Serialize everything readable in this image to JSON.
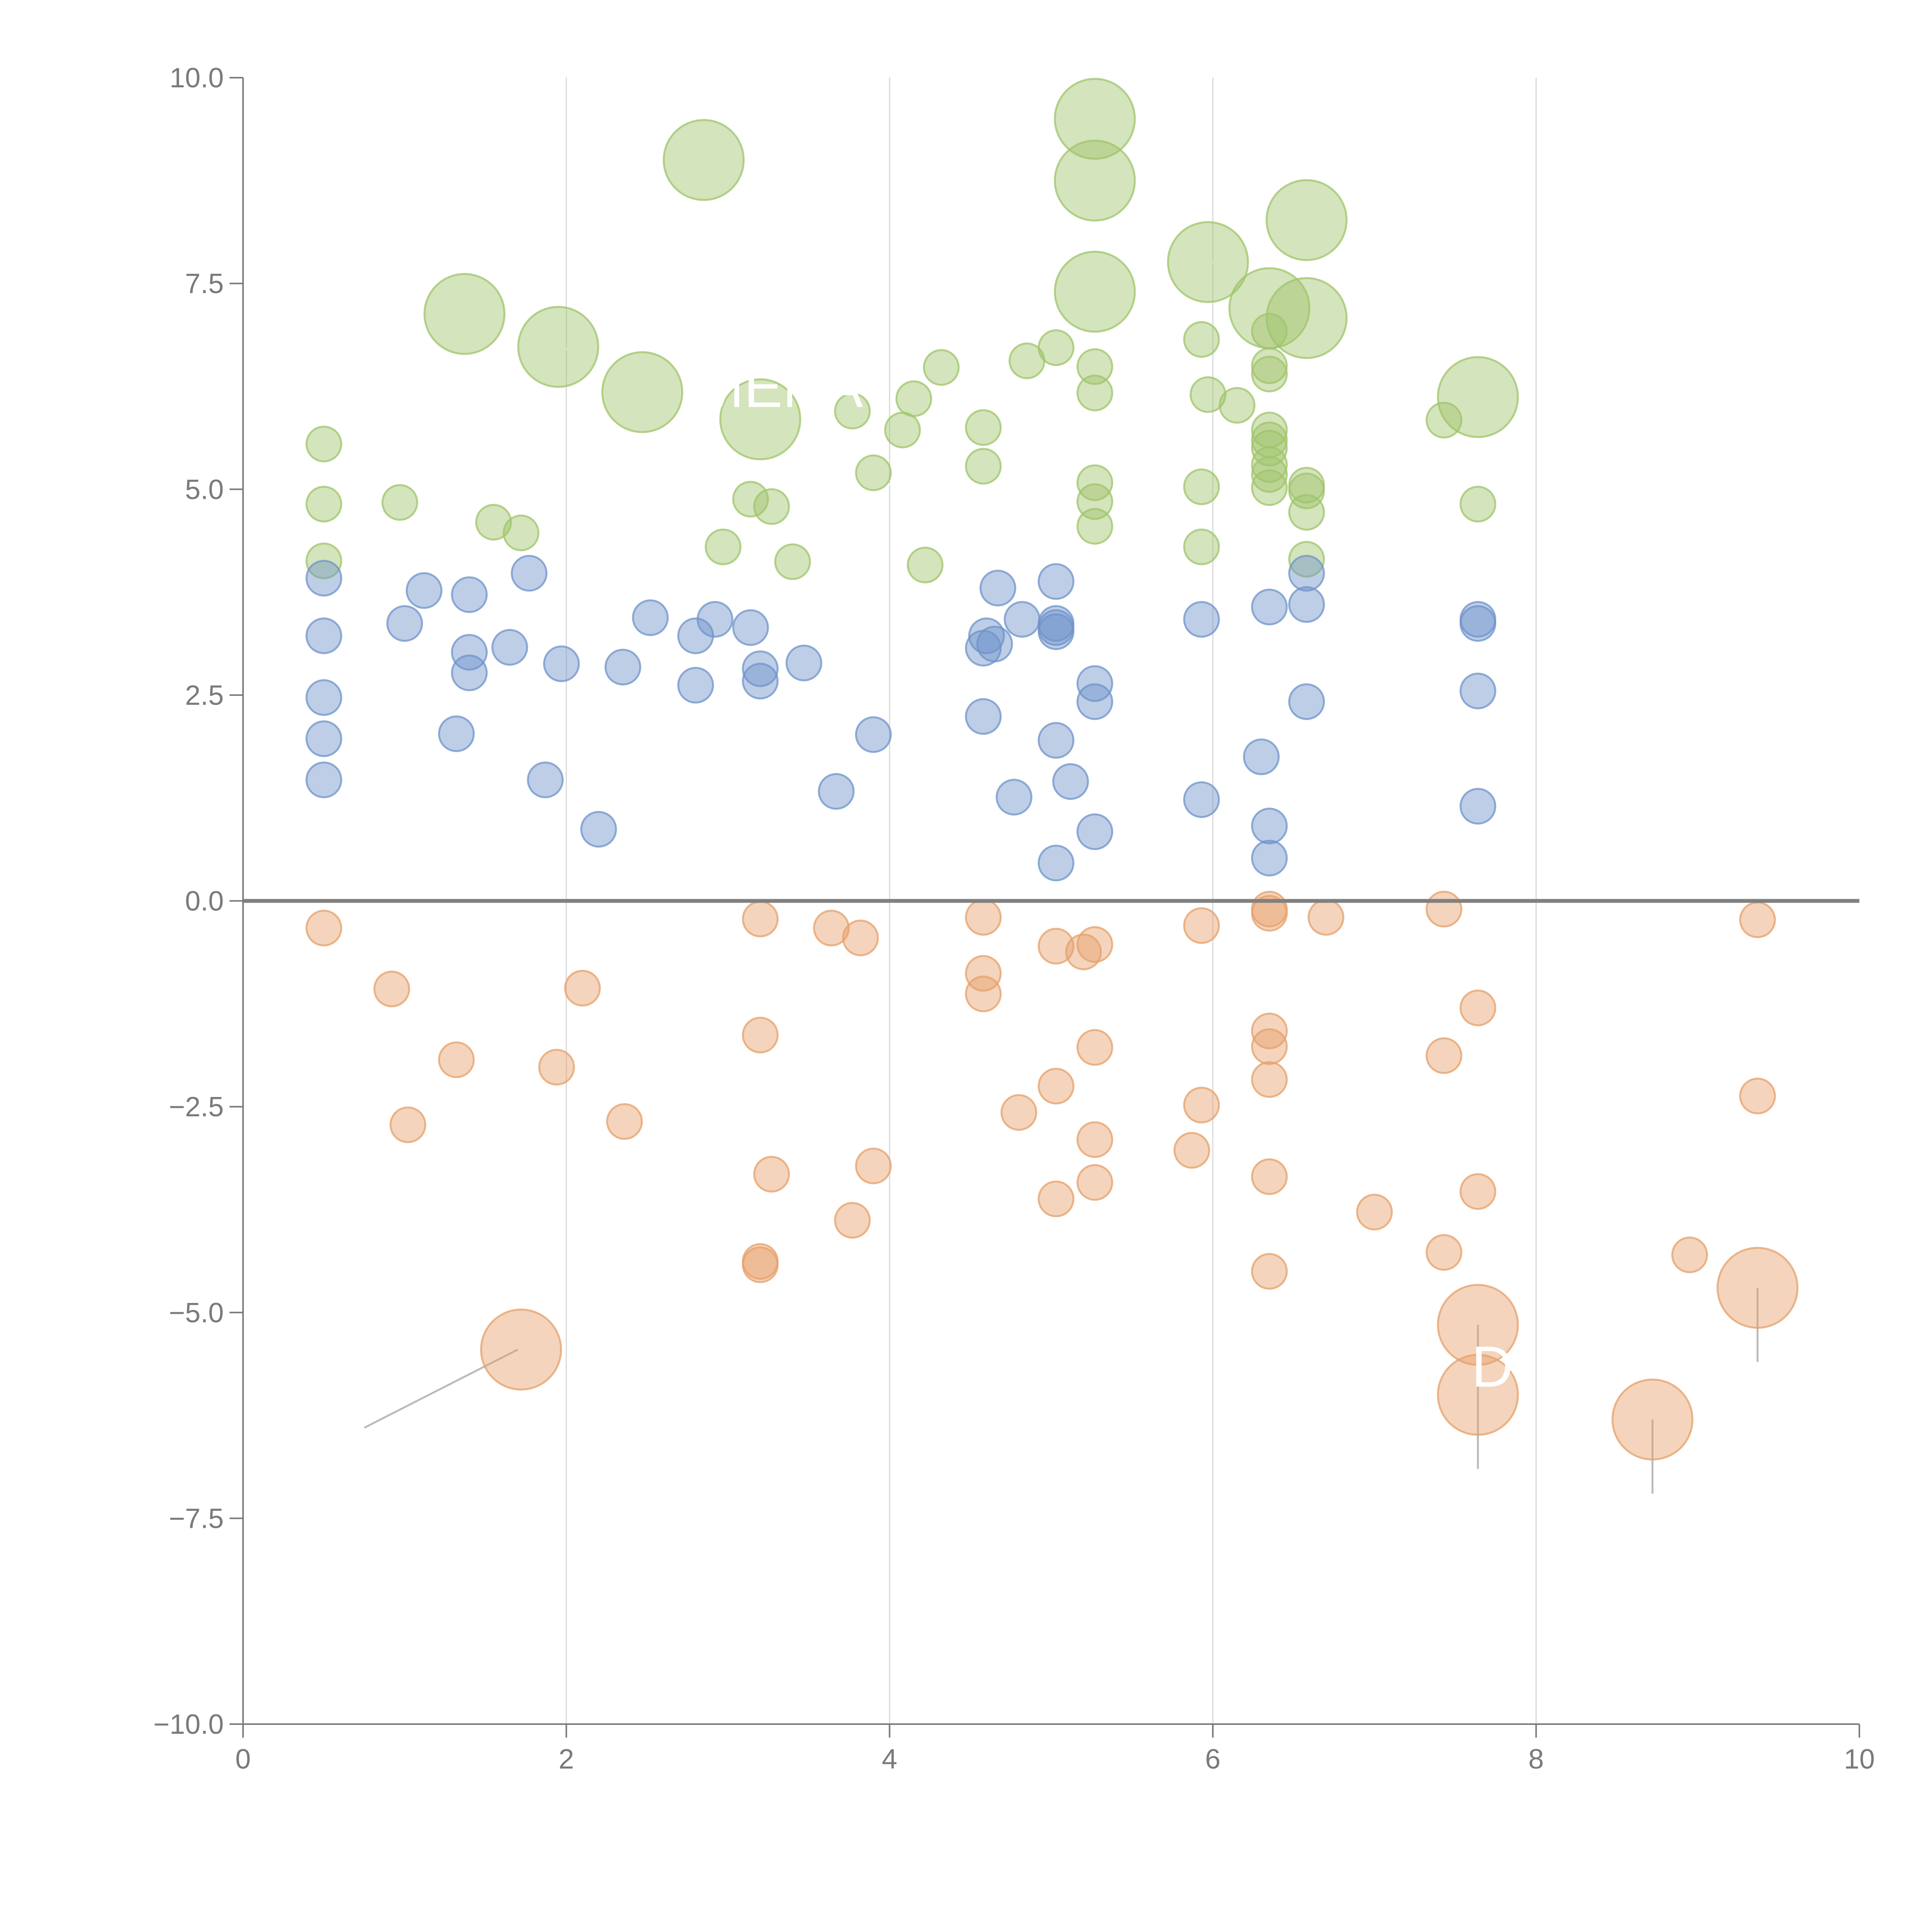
{
  "chart_data": {
    "type": "scatter",
    "title": "",
    "xlabel": "",
    "ylabel": "",
    "xlim": [
      0,
      10
    ],
    "ylim": [
      -10,
      10
    ],
    "x_ticks": [
      0,
      2,
      4,
      6,
      8,
      10
    ],
    "x_tick_labels": [
      "0",
      "2",
      "4",
      "6",
      "8",
      "10"
    ],
    "y_ticks": [
      10,
      7.5,
      5,
      2.5,
      0,
      -2.5,
      -5,
      -7.5,
      -10
    ],
    "y_tick_labels": [
      "10.0",
      "7.5",
      "5.0",
      "2.5",
      "0.0",
      "−2.5",
      "−5.0",
      "−7.5",
      "−10.0"
    ],
    "vertical_gridlines_at": [
      2,
      4,
      6,
      8
    ],
    "zero_line": 0,
    "colors": {
      "green": "#9fc46a",
      "blue": "#6f93c9",
      "orange": "#e6a06a",
      "axis": "#7a7a7a",
      "grid": "#d9d9d9",
      "zero_line": "#808080"
    },
    "annotations": [
      {
        "text": "MENA",
        "x": 2.8,
        "y": 6.0
      },
      {
        "text": "D",
        "x": 7.6,
        "y": -5.9
      }
    ],
    "connectors": [
      {
        "x1": 0.75,
        "y1": -6.4,
        "x2": 1.7,
        "y2": -5.45,
        "color": "#bbbbbb"
      },
      {
        "x1": 7.64,
        "y1": -5.15,
        "x2": 7.64,
        "y2": -6.9,
        "color": "#bbbbbb"
      },
      {
        "x1": 8.72,
        "y1": -6.3,
        "x2": 8.72,
        "y2": -7.2,
        "color": "#bbbbbb"
      },
      {
        "x1": 9.37,
        "y1": -4.7,
        "x2": 9.37,
        "y2": -5.6,
        "color": "#bbbbbb"
      },
      {
        "x1": 1.37,
        "y1": 7.13,
        "x2": 1.5,
        "y2": 7.35,
        "color": "#ffffff"
      },
      {
        "x1": 1.95,
        "y1": 6.73,
        "x2": 2.3,
        "y2": 6.55,
        "color": "#ffffff"
      },
      {
        "x1": 5.27,
        "y1": 8.75,
        "x2": 5.45,
        "y2": 8.95,
        "color": "#ffffff"
      },
      {
        "x1": 5.27,
        "y1": 9.5,
        "x2": 5.15,
        "y2": 9.6,
        "color": "#ffffff"
      },
      {
        "x1": 6.58,
        "y1": 8.27,
        "x2": 6.75,
        "y2": 8.45,
        "color": "#ffffff"
      },
      {
        "x1": 5.97,
        "y1": 7.76,
        "x2": 6.15,
        "y2": 7.75,
        "color": "#ffffff"
      },
      {
        "x1": 6.58,
        "y1": 7.08,
        "x2": 6.78,
        "y2": 7.2,
        "color": "#ffffff"
      },
      {
        "x1": 7.64,
        "y1": 6.12,
        "x2": 7.85,
        "y2": 5.95,
        "color": "#ffffff"
      },
      {
        "x1": 3.2,
        "y1": 5.85,
        "x2": 3.4,
        "y2": 5.7,
        "color": "#ffffff"
      },
      {
        "x1": 3.9,
        "y1": 5.2,
        "x2": 4.0,
        "y2": 5.05,
        "color": "#ffffff"
      }
    ],
    "series": [
      {
        "name": "green",
        "color": "#9fc46a",
        "points": [
          [
            2.85,
            9.0,
            2.3
          ],
          [
            5.27,
            9.5,
            2.3
          ],
          [
            5.27,
            8.75,
            2.3
          ],
          [
            6.58,
            8.27,
            2.3
          ],
          [
            5.97,
            7.76,
            2.3
          ],
          [
            5.27,
            7.4,
            2.3
          ],
          [
            1.37,
            7.13,
            2.3
          ],
          [
            6.35,
            7.2,
            2.3
          ],
          [
            6.58,
            7.08,
            2.3
          ],
          [
            1.95,
            6.73,
            2.3
          ],
          [
            2.47,
            6.18,
            2.3
          ],
          [
            3.2,
            5.85,
            2.3
          ],
          [
            7.64,
            6.12,
            2.3
          ],
          [
            0.5,
            5.55,
            1
          ],
          [
            0.5,
            4.82,
            1
          ],
          [
            0.5,
            4.13,
            1
          ],
          [
            0.97,
            4.84,
            1
          ],
          [
            1.55,
            4.6,
            1
          ],
          [
            1.72,
            4.47,
            1
          ],
          [
            2.97,
            4.3,
            1
          ],
          [
            3.14,
            4.88,
            1
          ],
          [
            3.27,
            4.79,
            1
          ],
          [
            3.4,
            4.12,
            1
          ],
          [
            3.77,
            5.95,
            1
          ],
          [
            3.9,
            5.2,
            1
          ],
          [
            4.08,
            5.72,
            1
          ],
          [
            4.15,
            6.1,
            1
          ],
          [
            4.22,
            4.08,
            1
          ],
          [
            4.32,
            6.48,
            1
          ],
          [
            4.58,
            5.75,
            1
          ],
          [
            4.58,
            5.28,
            1
          ],
          [
            4.85,
            6.56,
            1
          ],
          [
            5.03,
            6.72,
            1
          ],
          [
            5.27,
            6.49,
            1
          ],
          [
            5.27,
            6.17,
            1
          ],
          [
            5.27,
            5.08,
            1
          ],
          [
            5.27,
            4.85,
            1
          ],
          [
            5.27,
            4.55,
            1
          ],
          [
            5.93,
            6.82,
            1
          ],
          [
            5.93,
            5.03,
            1
          ],
          [
            5.93,
            4.3,
            1
          ],
          [
            5.97,
            6.15,
            1
          ],
          [
            6.15,
            6.02,
            1
          ],
          [
            6.35,
            6.92,
            1
          ],
          [
            6.35,
            6.5,
            1
          ],
          [
            6.35,
            6.4,
            1
          ],
          [
            6.35,
            5.72,
            1
          ],
          [
            6.35,
            5.6,
            1
          ],
          [
            6.35,
            5.5,
            1
          ],
          [
            6.35,
            5.3,
            1
          ],
          [
            6.35,
            5.18,
            1
          ],
          [
            6.35,
            5.02,
            1
          ],
          [
            6.58,
            5.05,
            1
          ],
          [
            6.58,
            4.98,
            1
          ],
          [
            6.58,
            4.72,
            1
          ],
          [
            6.58,
            4.15,
            1
          ],
          [
            7.43,
            5.84,
            1
          ],
          [
            7.64,
            4.82,
            1
          ]
        ]
      },
      {
        "name": "blue",
        "color": "#6f93c9",
        "points": [
          [
            0.5,
            3.92
          ],
          [
            0.5,
            3.22
          ],
          [
            0.5,
            2.47
          ],
          [
            0.5,
            1.97
          ],
          [
            0.5,
            1.47
          ],
          [
            1.0,
            3.37
          ],
          [
            1.12,
            3.77
          ],
          [
            1.32,
            2.03
          ],
          [
            1.4,
            3.72
          ],
          [
            1.4,
            3.02
          ],
          [
            1.4,
            2.77
          ],
          [
            1.65,
            3.08
          ],
          [
            1.77,
            3.98
          ],
          [
            1.87,
            1.47
          ],
          [
            1.97,
            2.88
          ],
          [
            2.2,
            0.87
          ],
          [
            2.35,
            2.84
          ],
          [
            2.52,
            3.44
          ],
          [
            2.8,
            3.22
          ],
          [
            2.8,
            2.62
          ],
          [
            2.92,
            3.42
          ],
          [
            3.14,
            3.32
          ],
          [
            3.2,
            2.82
          ],
          [
            3.2,
            2.67
          ],
          [
            3.47,
            2.89
          ],
          [
            3.67,
            1.33
          ],
          [
            3.9,
            2.02
          ],
          [
            4.58,
            3.07
          ],
          [
            4.58,
            2.24
          ],
          [
            4.6,
            3.22
          ],
          [
            4.65,
            3.12
          ],
          [
            4.67,
            3.8
          ],
          [
            4.77,
            1.26
          ],
          [
            4.82,
            3.42
          ],
          [
            5.03,
            3.88
          ],
          [
            5.03,
            3.37
          ],
          [
            5.03,
            3.32
          ],
          [
            5.03,
            3.27
          ],
          [
            5.03,
            1.95
          ],
          [
            5.03,
            0.46
          ],
          [
            5.12,
            1.45
          ],
          [
            5.27,
            2.64
          ],
          [
            5.27,
            2.42
          ],
          [
            5.27,
            0.84
          ],
          [
            5.93,
            3.42
          ],
          [
            5.93,
            1.23
          ],
          [
            6.3,
            1.75
          ],
          [
            6.35,
            3.57
          ],
          [
            6.35,
            0.91
          ],
          [
            6.35,
            0.52
          ],
          [
            6.58,
            3.98
          ],
          [
            6.58,
            3.6
          ],
          [
            6.58,
            2.42
          ],
          [
            7.64,
            3.42
          ],
          [
            7.64,
            3.37
          ],
          [
            7.64,
            2.55
          ],
          [
            7.64,
            1.15
          ]
        ]
      },
      {
        "name": "orange",
        "color": "#e6a06a",
        "points": [
          [
            1.72,
            -5.45,
            2.3
          ],
          [
            7.64,
            -5.15,
            2.3
          ],
          [
            7.64,
            -6.0,
            2.3
          ],
          [
            8.72,
            -6.3,
            2.3
          ],
          [
            9.37,
            -4.7,
            2.3
          ],
          [
            0.5,
            -0.33,
            1
          ],
          [
            0.92,
            -1.07,
            1
          ],
          [
            1.02,
            -2.72,
            1
          ],
          [
            1.32,
            -1.93,
            1
          ],
          [
            1.94,
            -2.02,
            1
          ],
          [
            2.1,
            -1.06,
            1
          ],
          [
            2.36,
            -2.68,
            1
          ],
          [
            3.2,
            -0.22,
            1
          ],
          [
            3.2,
            -1.63,
            1
          ],
          [
            3.2,
            -4.38,
            1
          ],
          [
            3.2,
            -4.42,
            1
          ],
          [
            3.27,
            -3.32,
            1
          ],
          [
            3.64,
            -0.33,
            1
          ],
          [
            3.77,
            -3.88,
            1
          ],
          [
            3.82,
            -0.45,
            1
          ],
          [
            3.9,
            -3.22,
            1
          ],
          [
            4.58,
            -0.2,
            1
          ],
          [
            4.58,
            -0.88,
            1
          ],
          [
            4.58,
            -1.13,
            1
          ],
          [
            4.8,
            -2.57,
            1
          ],
          [
            5.03,
            -0.55,
            1
          ],
          [
            5.03,
            -2.25,
            1
          ],
          [
            5.03,
            -3.62,
            1
          ],
          [
            5.2,
            -0.62,
            1
          ],
          [
            5.27,
            -0.53,
            1
          ],
          [
            5.27,
            -1.78,
            1
          ],
          [
            5.27,
            -2.9,
            1
          ],
          [
            5.27,
            -3.42,
            1
          ],
          [
            5.87,
            -3.03,
            1
          ],
          [
            5.93,
            -0.3,
            1
          ],
          [
            5.93,
            -2.48,
            1
          ],
          [
            6.35,
            -0.1,
            1
          ],
          [
            6.35,
            -0.15,
            1
          ],
          [
            6.35,
            -1.58,
            1
          ],
          [
            6.35,
            -1.77,
            1
          ],
          [
            6.35,
            -2.17,
            1
          ],
          [
            6.35,
            -3.35,
            1
          ],
          [
            6.35,
            -4.5,
            1
          ],
          [
            6.7,
            -0.2,
            1
          ],
          [
            7.0,
            -3.78,
            1
          ],
          [
            7.43,
            -0.1,
            1
          ],
          [
            7.43,
            -1.88,
            1
          ],
          [
            7.43,
            -4.27,
            1
          ],
          [
            7.64,
            -1.3,
            1
          ],
          [
            7.64,
            -3.53,
            1
          ],
          [
            8.95,
            -4.3,
            1
          ],
          [
            9.37,
            -0.23,
            1
          ],
          [
            9.37,
            -2.37,
            1
          ]
        ]
      }
    ]
  }
}
